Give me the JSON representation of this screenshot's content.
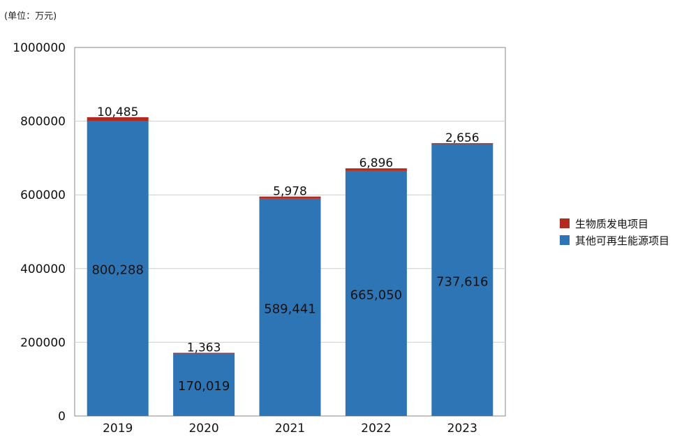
{
  "unit_label": "(单位：万元)",
  "colors": {
    "other": "#2e75b6",
    "biomass": "#b22a1e",
    "grid": "#cfcfcf",
    "axis": "#888888"
  },
  "chart_data": {
    "type": "bar",
    "stacked": true,
    "categories": [
      "2019",
      "2020",
      "2021",
      "2022",
      "2023"
    ],
    "series": [
      {
        "name": "其他可再生能源项目",
        "key": "other",
        "values": [
          800288,
          170019,
          589441,
          665050,
          737616
        ],
        "labels": [
          "800,288",
          "170,019",
          "589,441",
          "665,050",
          "737,616"
        ]
      },
      {
        "name": "生物质发电项目",
        "key": "biomass",
        "values": [
          10485,
          1363,
          5978,
          6896,
          2656
        ],
        "labels": [
          "10,485",
          "1,363",
          "5,978",
          "6,896",
          "2,656"
        ]
      }
    ],
    "y_ticks": [
      "0",
      "200000",
      "400000",
      "600000",
      "800000",
      "1000000"
    ],
    "ylim": [
      0,
      1000000
    ],
    "grid": true,
    "legend_position": "right"
  }
}
